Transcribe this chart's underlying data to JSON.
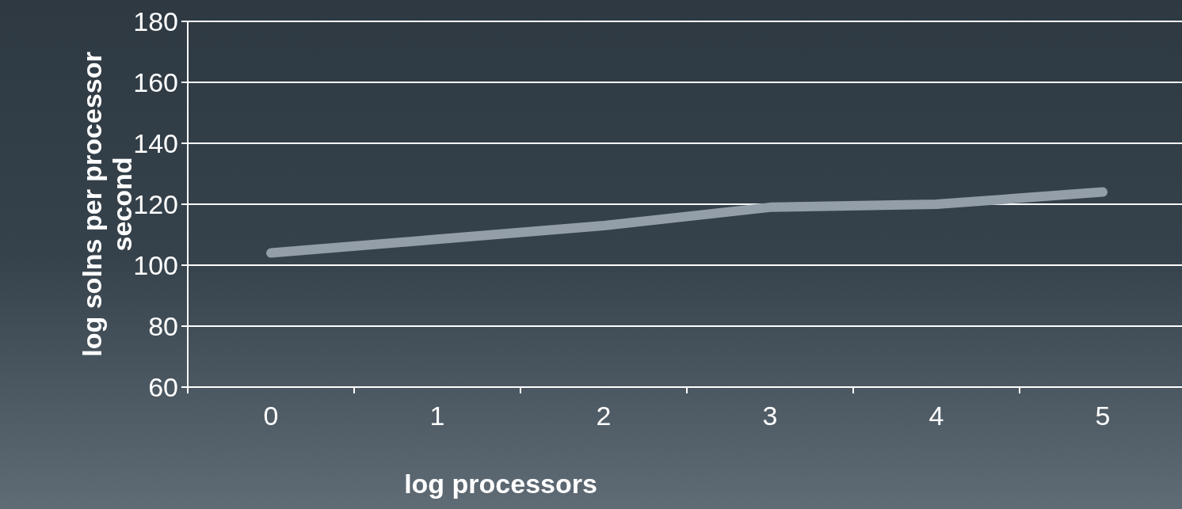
{
  "chart_data": {
    "type": "line",
    "xlabel": "log processors",
    "ylabel": "log solns per processor second",
    "categories": [
      "0",
      "1",
      "2",
      "3",
      "4",
      "5"
    ],
    "series": [
      {
        "color": "#939ea9",
        "values": [
          104,
          108.5,
          113,
          119,
          120,
          124
        ]
      }
    ],
    "ylim": [
      60,
      180
    ],
    "yticks": [
      60,
      80,
      100,
      120,
      140,
      160,
      180
    ],
    "grid": "y",
    "marker": "none",
    "line_style": "solid"
  }
}
